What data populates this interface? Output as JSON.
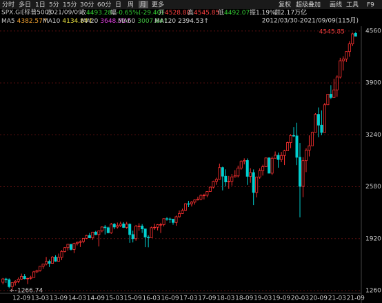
{
  "toolbar": {
    "tabs": [
      "分时",
      "多日",
      "1日",
      "5分",
      "15分",
      "30分",
      "60分",
      "日",
      "周",
      "月",
      "更多"
    ],
    "tools": [
      "复权",
      "超级叠加",
      "画线",
      "工具",
      "F9"
    ]
  },
  "quote": {
    "symbol": "SPX.GI[标普500]",
    "date": "2021/09/09",
    "fields": [
      {
        "label": "收",
        "value": "4493.28",
        "color": "#33cc33"
      },
      {
        "label": "幅",
        "value": "-0.65%(-29.40)",
        "color": "#33cc33"
      },
      {
        "label": "开",
        "value": "4528.80",
        "color": "#ff4040"
      },
      {
        "label": "高",
        "value": "4545.85",
        "color": "#ff4040"
      },
      {
        "label": "低",
        "value": "4492.07",
        "color": "#33cc33"
      },
      {
        "label": "振",
        "value": "1.19%",
        "color": "#dddddd"
      },
      {
        "label": "额",
        "value": "2.17万亿",
        "color": "#dddddd"
      }
    ]
  },
  "ma": [
    {
      "name": "MA5",
      "value": "4382.57↑",
      "color": "#f0a030"
    },
    {
      "name": "MA10",
      "value": "4134.84↑",
      "color": "#e8e040"
    },
    {
      "name": "MA20",
      "value": "3648.51↑",
      "color": "#e040e0"
    },
    {
      "name": "MA60",
      "value": "3007.64↑",
      "color": "#40c040"
    },
    {
      "name": "MA120",
      "value": "2394.53↑",
      "color": "#dddddd"
    }
  ],
  "range": "2012/03/30-2021/09/09(115月)",
  "chart_data": {
    "type": "candlestick",
    "up_color": "#ff3030",
    "down_color": "#00d0d0",
    "ylim": [
      1225,
      4620
    ],
    "yticks": [
      4560,
      3900,
      3240,
      2580,
      1920,
      1260
    ],
    "grid": true,
    "annotations": [
      "4545.85",
      "1266.74"
    ],
    "categories": [
      null,
      null,
      null,
      null,
      null,
      null,
      "12-09",
      null,
      null,
      null,
      null,
      null,
      "13-03",
      null,
      null,
      null,
      null,
      null,
      "13-09",
      null,
      null,
      null,
      null,
      null,
      "14-03",
      null,
      null,
      null,
      null,
      null,
      "14-09",
      null,
      null,
      null,
      null,
      null,
      "15-03",
      null,
      null,
      null,
      null,
      null,
      "15-09",
      null,
      null,
      null,
      null,
      null,
      "16-03",
      null,
      null,
      null,
      null,
      null,
      "16-09",
      null,
      null,
      null,
      null,
      null,
      "17-03",
      null,
      null,
      null,
      null,
      null,
      "17-09",
      null,
      null,
      null,
      null,
      null,
      "18-03",
      null,
      null,
      null,
      null,
      null,
      "18-09",
      null,
      null,
      null,
      null,
      null,
      "19-03",
      null,
      null,
      null,
      null,
      null,
      "19-09",
      null,
      null,
      null,
      null,
      null,
      "20-03",
      null,
      null,
      null,
      null,
      null,
      "20-09",
      null,
      null,
      null,
      null,
      null,
      "21-03",
      null,
      null,
      null,
      null,
      null,
      "21-09"
    ],
    "candles": [
      [
        1366,
        1420,
        1340,
        1408
      ],
      [
        1408,
        1422,
        1357,
        1398
      ],
      [
        1398,
        1415,
        1291,
        1310
      ],
      [
        1310,
        1363,
        1266.74,
        1362
      ],
      [
        1362,
        1392,
        1325,
        1379
      ],
      [
        1379,
        1427,
        1355,
        1406
      ],
      [
        1406,
        1475,
        1396,
        1441
      ],
      [
        1441,
        1470,
        1403,
        1412
      ],
      [
        1412,
        1420,
        1343,
        1416
      ],
      [
        1416,
        1448,
        1398,
        1426
      ],
      [
        1426,
        1510,
        1426,
        1498
      ],
      [
        1498,
        1525,
        1485,
        1515
      ],
      [
        1515,
        1570,
        1501,
        1569
      ],
      [
        1569,
        1598,
        1536,
        1598
      ],
      [
        1598,
        1687,
        1581,
        1631
      ],
      [
        1631,
        1654,
        1560,
        1606
      ],
      [
        1606,
        1698,
        1605,
        1686
      ],
      [
        1686,
        1709,
        1627,
        1633
      ],
      [
        1633,
        1730,
        1633,
        1682
      ],
      [
        1682,
        1775,
        1647,
        1757
      ],
      [
        1757,
        1813,
        1746,
        1806
      ],
      [
        1806,
        1849,
        1768,
        1848
      ],
      [
        1848,
        1851,
        1770,
        1783
      ],
      [
        1783,
        1868,
        1737,
        1859
      ],
      [
        1859,
        1884,
        1834,
        1872
      ],
      [
        1872,
        1898,
        1814,
        1884
      ],
      [
        1884,
        1925,
        1863,
        1924
      ],
      [
        1924,
        1968,
        1915,
        1960
      ],
      [
        1960,
        1992,
        1930,
        1931
      ],
      [
        1931,
        2006,
        1905,
        2003
      ],
      [
        2003,
        2019,
        1965,
        1972
      ],
      [
        1972,
        2019,
        1821,
        2018
      ],
      [
        2018,
        2075,
        2001,
        2068
      ],
      [
        2068,
        2094,
        1973,
        2059
      ],
      [
        2059,
        2072,
        1988,
        1995
      ],
      [
        1995,
        2120,
        1981,
        2104
      ],
      [
        2104,
        2118,
        2040,
        2068
      ],
      [
        2068,
        2125,
        2048,
        2086
      ],
      [
        2086,
        2135,
        2067,
        2107
      ],
      [
        2107,
        2130,
        2056,
        2063
      ],
      [
        2063,
        2133,
        2045,
        2104
      ],
      [
        2104,
        2113,
        1867,
        1972
      ],
      [
        1972,
        2021,
        1872,
        1920
      ],
      [
        1920,
        2094,
        1894,
        2079
      ],
      [
        2079,
        2116,
        2020,
        2080
      ],
      [
        2080,
        2105,
        1993,
        2044
      ],
      [
        2044,
        2044,
        1812,
        1940
      ],
      [
        1940,
        1963,
        1810,
        1932
      ],
      [
        1932,
        2073,
        1932,
        2060
      ],
      [
        2060,
        2111,
        2033,
        2065
      ],
      [
        2065,
        2104,
        2025,
        2097
      ],
      [
        2097,
        2121,
        1992,
        2099
      ],
      [
        2099,
        2178,
        2075,
        2174
      ],
      [
        2174,
        2194,
        2148,
        2171
      ],
      [
        2171,
        2188,
        2120,
        2168
      ],
      [
        2168,
        2169,
        2097,
        2126
      ],
      [
        2126,
        2214,
        2084,
        2199
      ],
      [
        2199,
        2278,
        2187,
        2239
      ],
      [
        2239,
        2301,
        2234,
        2279
      ],
      [
        2279,
        2371,
        2271,
        2364
      ],
      [
        2364,
        2401,
        2322,
        2363
      ],
      [
        2363,
        2398,
        2329,
        2384
      ],
      [
        2384,
        2418,
        2353,
        2412
      ],
      [
        2412,
        2454,
        2405,
        2423
      ],
      [
        2423,
        2484,
        2407,
        2470
      ],
      [
        2470,
        2491,
        2418,
        2472
      ],
      [
        2472,
        2519,
        2447,
        2519
      ],
      [
        2519,
        2582,
        2515,
        2575
      ],
      [
        2575,
        2657,
        2557,
        2648
      ],
      [
        2648,
        2695,
        2605,
        2674
      ],
      [
        2674,
        2873,
        2670,
        2824
      ],
      [
        2824,
        2835,
        2533,
        2714
      ],
      [
        2714,
        2801,
        2585,
        2641
      ],
      [
        2641,
        2718,
        2553,
        2648
      ],
      [
        2648,
        2742,
        2594,
        2705
      ],
      [
        2705,
        2791,
        2698,
        2718
      ],
      [
        2718,
        2848,
        2698,
        2816
      ],
      [
        2816,
        2916,
        2796,
        2902
      ],
      [
        2902,
        2941,
        2864,
        2914
      ],
      [
        2914,
        2940,
        2604,
        2712
      ],
      [
        2712,
        2815,
        2631,
        2760
      ],
      [
        2760,
        2800,
        2347,
        2507
      ],
      [
        2507,
        2708,
        2444,
        2704
      ],
      [
        2704,
        2813,
        2681,
        2784
      ],
      [
        2784,
        2860,
        2722,
        2834
      ],
      [
        2834,
        2950,
        2830,
        2946
      ],
      [
        2946,
        2954,
        2750,
        2752
      ],
      [
        2752,
        2964,
        2729,
        2942
      ],
      [
        2942,
        3028,
        2940,
        2980
      ],
      [
        2980,
        3014,
        2822,
        2926
      ],
      [
        2926,
        3022,
        2892,
        2977
      ],
      [
        2977,
        3050,
        2856,
        3038
      ],
      [
        3038,
        3154,
        3035,
        3141
      ],
      [
        3141,
        3248,
        3070,
        3231
      ],
      [
        3231,
        3338,
        3214,
        3226
      ],
      [
        3226,
        3394,
        2855,
        2954
      ],
      [
        2954,
        3137,
        2191,
        2585
      ],
      [
        2585,
        2955,
        2447,
        2912
      ],
      [
        2912,
        3068,
        2766,
        3044
      ],
      [
        3044,
        3233,
        2965,
        3100
      ],
      [
        3100,
        3280,
        3098,
        3271
      ],
      [
        3271,
        3515,
        3270,
        3500
      ],
      [
        3500,
        3588,
        3209,
        3363
      ],
      [
        3363,
        3550,
        3234,
        3270
      ],
      [
        3270,
        3646,
        3268,
        3622
      ],
      [
        3622,
        3760,
        3620,
        3756
      ],
      [
        3756,
        3871,
        3695,
        3714
      ],
      [
        3714,
        3951,
        3710,
        3811
      ],
      [
        3811,
        3995,
        3723,
        3973
      ],
      [
        3973,
        4218,
        3956,
        4181
      ],
      [
        4181,
        4238,
        4057,
        4204
      ],
      [
        4204,
        4302,
        4165,
        4298
      ],
      [
        4298,
        4429,
        4233,
        4395
      ],
      [
        4395,
        4538,
        4368,
        4523
      ],
      [
        4528.8,
        4545.85,
        4492.07,
        4493.28
      ]
    ]
  }
}
